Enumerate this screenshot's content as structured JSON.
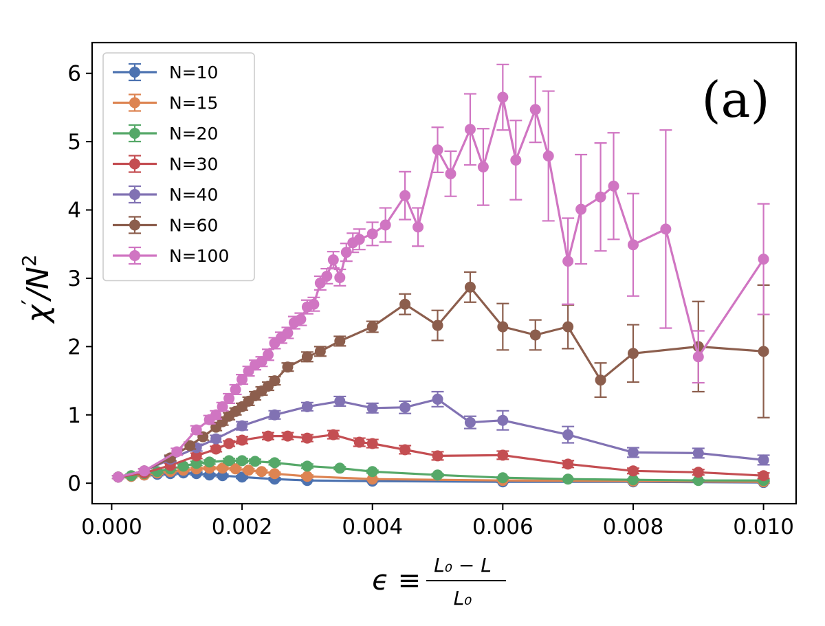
{
  "chart_data": {
    "type": "line",
    "panel_label": "(a)",
    "xlim": [
      -0.0003,
      0.0105
    ],
    "ylim": [
      -0.3,
      6.45
    ],
    "x_ticks": [
      0.0,
      0.002,
      0.004,
      0.006,
      0.008,
      0.01
    ],
    "x_tick_labels": [
      "0.000",
      "0.002",
      "0.004",
      "0.006",
      "0.008",
      "0.010"
    ],
    "y_ticks": [
      0,
      1,
      2,
      3,
      4,
      5,
      6
    ],
    "y_tick_labels": [
      "0",
      "1",
      "2",
      "3",
      "4",
      "5",
      "6"
    ],
    "ylabel": {
      "base": "χ",
      "prime": "′",
      "slash": "/N",
      "exp": "2"
    },
    "xlabel": {
      "lhs": "ϵ ≡",
      "numerator": "L₀ − L",
      "denominator": "L₀"
    },
    "legend_position": "upper-left",
    "grid": false,
    "series": [
      {
        "name": "N=10",
        "color": "#4c72b0",
        "x": [
          0.0001,
          0.0003,
          0.0005,
          0.0007,
          0.0009,
          0.0011,
          0.0013,
          0.0015,
          0.0017,
          0.002,
          0.0025,
          0.003,
          0.004,
          0.006,
          0.008,
          0.01
        ],
        "y": [
          0.09,
          0.1,
          0.12,
          0.13,
          0.14,
          0.15,
          0.14,
          0.12,
          0.11,
          0.09,
          0.06,
          0.04,
          0.03,
          0.02,
          0.02,
          0.01
        ],
        "err": [
          0.02,
          0.02,
          0.02,
          0.02,
          0.02,
          0.02,
          0.02,
          0.02,
          0.02,
          0.02,
          0.02,
          0.01,
          0.01,
          0.01,
          0.01,
          0.01
        ]
      },
      {
        "name": "N=15",
        "color": "#dd8452",
        "x": [
          0.0001,
          0.0003,
          0.0005,
          0.0007,
          0.0009,
          0.0011,
          0.0013,
          0.0015,
          0.0017,
          0.0019,
          0.0021,
          0.0023,
          0.0025,
          0.003,
          0.004,
          0.006,
          0.008,
          0.01
        ],
        "y": [
          0.09,
          0.1,
          0.12,
          0.15,
          0.17,
          0.19,
          0.21,
          0.22,
          0.22,
          0.21,
          0.19,
          0.17,
          0.14,
          0.1,
          0.06,
          0.04,
          0.03,
          0.02
        ],
        "err": [
          0.02,
          0.02,
          0.02,
          0.02,
          0.02,
          0.02,
          0.02,
          0.02,
          0.02,
          0.02,
          0.02,
          0.02,
          0.02,
          0.02,
          0.01,
          0.01,
          0.01,
          0.01
        ]
      },
      {
        "name": "N=20",
        "color": "#55a868",
        "x": [
          0.0001,
          0.0003,
          0.0005,
          0.0007,
          0.0009,
          0.0011,
          0.0013,
          0.0015,
          0.0018,
          0.002,
          0.0022,
          0.0025,
          0.003,
          0.0035,
          0.004,
          0.005,
          0.006,
          0.007,
          0.008,
          0.009,
          0.01
        ],
        "y": [
          0.09,
          0.11,
          0.14,
          0.17,
          0.21,
          0.25,
          0.29,
          0.31,
          0.33,
          0.33,
          0.32,
          0.3,
          0.25,
          0.22,
          0.17,
          0.12,
          0.08,
          0.06,
          0.05,
          0.04,
          0.04
        ],
        "err": [
          0.02,
          0.02,
          0.02,
          0.02,
          0.02,
          0.02,
          0.03,
          0.03,
          0.03,
          0.03,
          0.03,
          0.03,
          0.03,
          0.02,
          0.02,
          0.02,
          0.01,
          0.01,
          0.01,
          0.01,
          0.01
        ]
      },
      {
        "name": "N=30",
        "color": "#c44e52",
        "x": [
          0.0001,
          0.0005,
          0.0009,
          0.0013,
          0.0016,
          0.0018,
          0.002,
          0.0024,
          0.0027,
          0.003,
          0.0034,
          0.0038,
          0.004,
          0.0045,
          0.005,
          0.006,
          0.007,
          0.008,
          0.009,
          0.01
        ],
        "y": [
          0.09,
          0.15,
          0.26,
          0.4,
          0.5,
          0.58,
          0.63,
          0.69,
          0.69,
          0.66,
          0.71,
          0.6,
          0.58,
          0.49,
          0.4,
          0.41,
          0.28,
          0.18,
          0.16,
          0.11
        ],
        "err": [
          0.02,
          0.02,
          0.03,
          0.04,
          0.04,
          0.04,
          0.05,
          0.05,
          0.05,
          0.05,
          0.06,
          0.06,
          0.06,
          0.06,
          0.06,
          0.06,
          0.05,
          0.04,
          0.04,
          0.04
        ]
      },
      {
        "name": "N=40",
        "color": "#8172b3",
        "x": [
          0.0001,
          0.0005,
          0.0009,
          0.0013,
          0.0016,
          0.002,
          0.0025,
          0.003,
          0.0035,
          0.004,
          0.0045,
          0.005,
          0.0055,
          0.006,
          0.007,
          0.008,
          0.009,
          0.01
        ],
        "y": [
          0.09,
          0.18,
          0.35,
          0.52,
          0.65,
          0.84,
          1.0,
          1.12,
          1.2,
          1.1,
          1.11,
          1.23,
          0.89,
          0.92,
          0.71,
          0.45,
          0.44,
          0.34
        ],
        "err": [
          0.02,
          0.03,
          0.04,
          0.05,
          0.05,
          0.06,
          0.06,
          0.06,
          0.07,
          0.07,
          0.09,
          0.11,
          0.09,
          0.14,
          0.12,
          0.07,
          0.07,
          0.07
        ]
      },
      {
        "name": "N=60",
        "color": "#8c5e4d",
        "x": [
          0.0001,
          0.0005,
          0.0009,
          0.0012,
          0.0014,
          0.0016,
          0.0017,
          0.0018,
          0.0019,
          0.002,
          0.0021,
          0.0022,
          0.0023,
          0.0024,
          0.0025,
          0.0027,
          0.003,
          0.0032,
          0.0035,
          0.004,
          0.0045,
          0.005,
          0.0055,
          0.006,
          0.0065,
          0.007,
          0.0075,
          0.008,
          0.009,
          0.01
        ],
        "y": [
          0.09,
          0.18,
          0.37,
          0.55,
          0.68,
          0.82,
          0.9,
          0.98,
          1.05,
          1.12,
          1.2,
          1.28,
          1.35,
          1.42,
          1.5,
          1.7,
          1.85,
          1.93,
          2.08,
          2.29,
          2.62,
          2.31,
          2.87,
          2.29,
          2.17,
          2.29,
          1.51,
          1.9,
          2.0,
          1.93
        ],
        "err": [
          0.02,
          0.03,
          0.04,
          0.05,
          0.05,
          0.05,
          0.05,
          0.05,
          0.05,
          0.05,
          0.06,
          0.06,
          0.06,
          0.06,
          0.06,
          0.06,
          0.07,
          0.07,
          0.07,
          0.08,
          0.15,
          0.22,
          0.22,
          0.34,
          0.22,
          0.32,
          0.25,
          0.42,
          0.66,
          0.97
        ]
      },
      {
        "name": "N=100",
        "color": "#d075c2",
        "x": [
          0.0001,
          0.0005,
          0.001,
          0.0013,
          0.0015,
          0.0016,
          0.0017,
          0.0018,
          0.0019,
          0.002,
          0.0021,
          0.0022,
          0.0023,
          0.0024,
          0.0025,
          0.0026,
          0.0027,
          0.0028,
          0.0029,
          0.003,
          0.0031,
          0.0032,
          0.0033,
          0.0034,
          0.0035,
          0.0036,
          0.0037,
          0.0038,
          0.004,
          0.0042,
          0.0045,
          0.0047,
          0.005,
          0.0052,
          0.0055,
          0.0057,
          0.006,
          0.0062,
          0.0065,
          0.0067,
          0.007,
          0.0072,
          0.0075,
          0.0077,
          0.008,
          0.0085,
          0.009,
          0.01
        ],
        "y": [
          0.09,
          0.18,
          0.46,
          0.78,
          0.93,
          1.0,
          1.12,
          1.24,
          1.37,
          1.52,
          1.64,
          1.73,
          1.78,
          1.88,
          2.05,
          2.13,
          2.2,
          2.35,
          2.4,
          2.58,
          2.62,
          2.93,
          3.03,
          3.27,
          3.01,
          3.38,
          3.52,
          3.57,
          3.65,
          3.78,
          4.21,
          3.75,
          4.88,
          4.53,
          5.18,
          4.63,
          5.65,
          4.73,
          5.47,
          4.79,
          3.25,
          4.01,
          4.19,
          4.35,
          3.49,
          3.72,
          1.85,
          3.28
        ],
        "err": [
          0.02,
          0.03,
          0.05,
          0.06,
          0.06,
          0.06,
          0.06,
          0.07,
          0.07,
          0.07,
          0.07,
          0.07,
          0.07,
          0.08,
          0.08,
          0.08,
          0.08,
          0.09,
          0.09,
          0.1,
          0.1,
          0.1,
          0.11,
          0.12,
          0.12,
          0.13,
          0.14,
          0.15,
          0.17,
          0.25,
          0.35,
          0.28,
          0.33,
          0.33,
          0.52,
          0.56,
          0.48,
          0.58,
          0.48,
          0.95,
          0.63,
          0.8,
          0.79,
          0.78,
          0.75,
          1.45,
          0.38,
          0.81
        ]
      }
    ]
  }
}
